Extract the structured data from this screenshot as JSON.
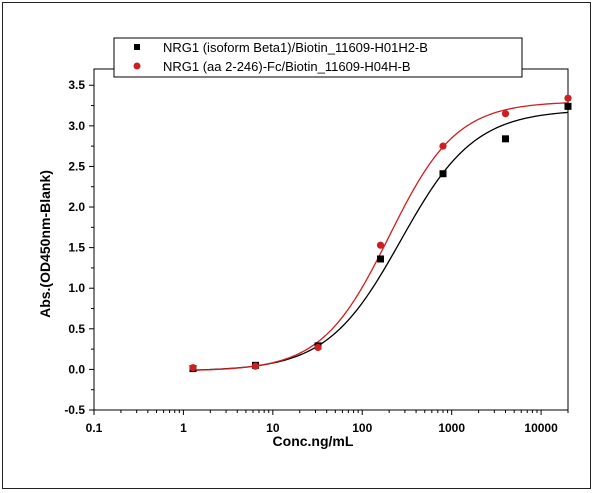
{
  "chart_data": {
    "type": "scatter",
    "xlabel": "Conc.ng/mL",
    "ylabel": "Abs.(OD450nm-Blank)",
    "xscale": "log",
    "xlim": [
      0.1,
      20000
    ],
    "ylim": [
      -0.5,
      3.7
    ],
    "x_ticks": [
      0.1,
      1,
      10,
      100,
      1000,
      10000
    ],
    "x_tick_labels": [
      "0.1",
      "1",
      "10",
      "100",
      "1000",
      "10000"
    ],
    "y_ticks": [
      -0.5,
      0.0,
      0.5,
      1.0,
      1.5,
      2.0,
      2.5,
      3.0,
      3.5
    ],
    "y_tick_labels": [
      "-0.5",
      "0.0",
      "0.5",
      "1.0",
      "1.5",
      "2.0",
      "2.5",
      "3.0",
      "3.5"
    ],
    "legend_position": "top",
    "grid": false,
    "series": [
      {
        "name": "NRG1 (isoform Beta1)/Biotin_11609-H01H2-B",
        "marker": "square",
        "color": "#000000",
        "x": [
          1.28,
          6.4,
          32,
          160,
          800,
          4000,
          20000
        ],
        "y": [
          0.01,
          0.05,
          0.29,
          1.36,
          2.41,
          2.84,
          3.24
        ],
        "fit": {
          "bottom": -0.02,
          "top": 3.2,
          "ec50": 270,
          "hill": 1.05
        }
      },
      {
        "name": "NRG1 (aa 2-246)-Fc/Biotin_11609-H04H-B",
        "marker": "circle",
        "color": "#cc1f1f",
        "x": [
          1.28,
          6.4,
          32,
          160,
          800,
          4000,
          20000
        ],
        "y": [
          0.02,
          0.04,
          0.27,
          1.53,
          2.75,
          3.15,
          3.34
        ],
        "fit": {
          "bottom": -0.02,
          "top": 3.3,
          "ec50": 200,
          "hill": 1.15
        }
      }
    ]
  }
}
